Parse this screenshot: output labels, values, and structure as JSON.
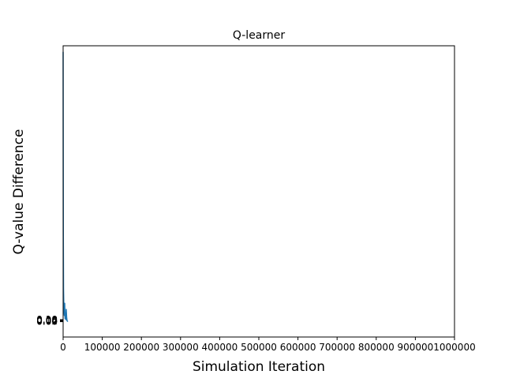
{
  "chart_data": {
    "type": "line",
    "title": "Q-learner",
    "xlabel": "Simulation Iteration",
    "ylabel": "Q-value Difference",
    "xlim": [
      0,
      1000000
    ],
    "ylim": [
      -0.75,
      13.5
    ],
    "x_ticks": [
      0,
      100000,
      200000,
      300000,
      400000,
      500000,
      600000,
      700000,
      800000,
      900000,
      1000000
    ],
    "x_tick_labels": [
      "0",
      "100000",
      "200000",
      "300000",
      "400000",
      "500000",
      "600000",
      "700000",
      "800000",
      "900000",
      "1000000"
    ],
    "y_ticks": [
      0.0,
      0.02,
      0.04,
      0.06,
      0.08,
      0.1
    ],
    "y_tick_labels": [
      "0.00",
      "0.02",
      "0.04",
      "0.06",
      "0.08",
      "0.10"
    ],
    "grid": false,
    "series": [
      {
        "color": "#1f77b4",
        "x": [
          0,
          200,
          500,
          1000,
          2000,
          3000,
          4000,
          5000,
          6000,
          7000,
          8000,
          9000,
          10000,
          12000
        ],
        "y": [
          13.2,
          9.5,
          4.2,
          1.6,
          0.55,
          0.3,
          0.9,
          0.15,
          0.35,
          0.1,
          0.6,
          0.2,
          0.05,
          0.0
        ]
      }
    ]
  }
}
